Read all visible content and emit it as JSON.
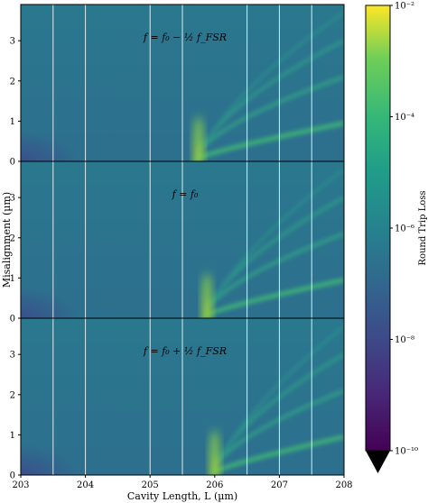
{
  "chart_data": {
    "type": "heatmap",
    "xlabel": "Cavity Length, L (µm)",
    "ylabel": "Misalignment (µm)",
    "x_ticks": [
      "203",
      "204",
      "205",
      "206",
      "207",
      "208"
    ],
    "xlim": [
      203,
      208
    ],
    "panels": [
      {
        "annotation": "f = f₀ − ½ f_FSR",
        "ylim": [
          0,
          3.9
        ],
        "y_ticks": [
          "0",
          "1",
          "2",
          "3"
        ],
        "resonance_center": 205.75
      },
      {
        "annotation": "f = f₀",
        "ylim": [
          0,
          3.9
        ],
        "y_ticks": [
          "0",
          "1",
          "2",
          "3"
        ],
        "resonance_center": 205.88
      },
      {
        "annotation": "f = f₀ + ½ f_FSR",
        "ylim": [
          0,
          3.9
        ],
        "y_ticks": [
          "0",
          "1",
          "2",
          "3"
        ],
        "resonance_center": 206.0
      }
    ],
    "vertical_lines_x": [
      203.5,
      204.0,
      205.0,
      205.5,
      206.5,
      207.0,
      207.5
    ],
    "colorbar": {
      "label": "Round Trip Loss",
      "scale": "log",
      "range": [
        1e-10,
        0.01
      ],
      "ticks": [
        "10⁻²",
        "10⁻⁴",
        "10⁻⁶",
        "10⁻⁸",
        "10⁻¹⁰"
      ],
      "colormap": "viridis",
      "extend": "min"
    }
  }
}
